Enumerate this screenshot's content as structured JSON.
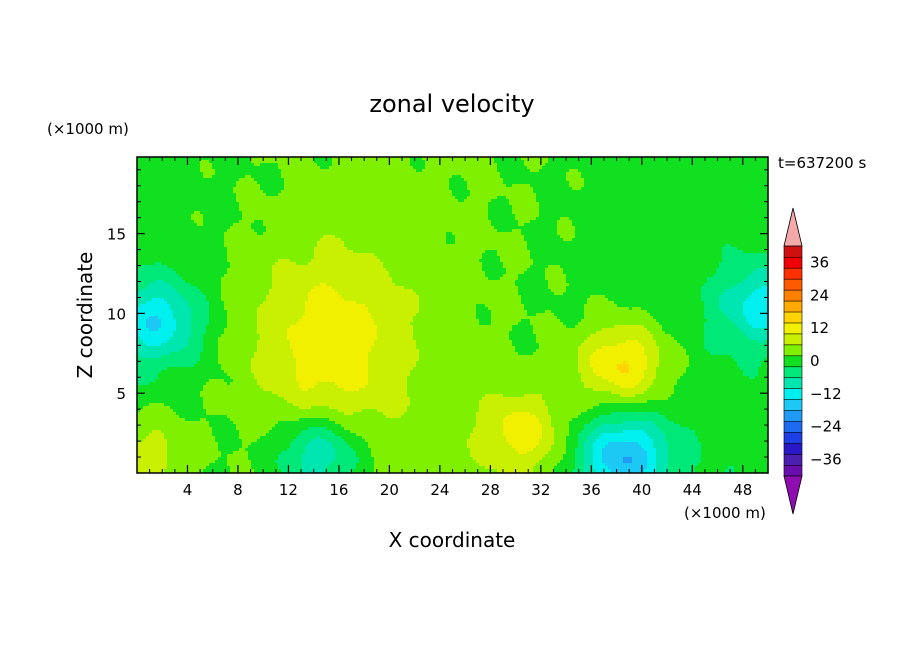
{
  "chart_data": {
    "type": "heatmap",
    "title": "zonal velocity",
    "xlabel": "X coordinate",
    "ylabel": "Z coordinate",
    "x_unit": "(×1000 m)",
    "y_unit": "(×1000 m)",
    "time_label": "t=637200 s",
    "xlim": [
      0,
      50
    ],
    "ylim": [
      0,
      19.8
    ],
    "x_ticks": [
      4,
      8,
      12,
      16,
      20,
      24,
      28,
      32,
      36,
      40,
      44,
      48
    ],
    "y_ticks": [
      5,
      10,
      15
    ],
    "colorbar": {
      "range": [
        -42,
        42
      ],
      "step": 4,
      "ticks": [
        36,
        24,
        12,
        0,
        -12,
        -24,
        -36
      ],
      "extend": "both",
      "colors": [
        "#6a0dad",
        "#4b1fb0",
        "#2a18c8",
        "#1e3ee6",
        "#1d6bf0",
        "#1f9bf6",
        "#1cc9f5",
        "#00f0f0",
        "#00e6b0",
        "#00e878",
        "#10e020",
        "#7ff000",
        "#c8f000",
        "#f0f000",
        "#ffd400",
        "#ffaa00",
        "#ff8000",
        "#ff5a00",
        "#ff3000",
        "#f00000",
        "#d01010"
      ],
      "under_color": "#8e0cb0",
      "over_color": "#f5a8a8"
    },
    "features": [
      {
        "kind": "positive_core",
        "x": 38.5,
        "z": 6.8,
        "value": 14
      },
      {
        "kind": "positive_band",
        "x": 15,
        "z": 8,
        "value": 10
      },
      {
        "kind": "negative_core",
        "x": 38.5,
        "z": 1.0,
        "value": -18
      },
      {
        "kind": "negative_core",
        "x": 14.5,
        "z": 1.2,
        "value": -14
      },
      {
        "kind": "negative_core",
        "x": 1.5,
        "z": 9.5,
        "value": -14
      },
      {
        "kind": "negative_core",
        "x": 49.5,
        "z": 10.5,
        "value": -12
      },
      {
        "kind": "positive_core",
        "x": 1.0,
        "z": 1.2,
        "value": 8
      },
      {
        "kind": "positive_core",
        "x": 30.5,
        "z": 2.5,
        "value": 10
      }
    ]
  }
}
